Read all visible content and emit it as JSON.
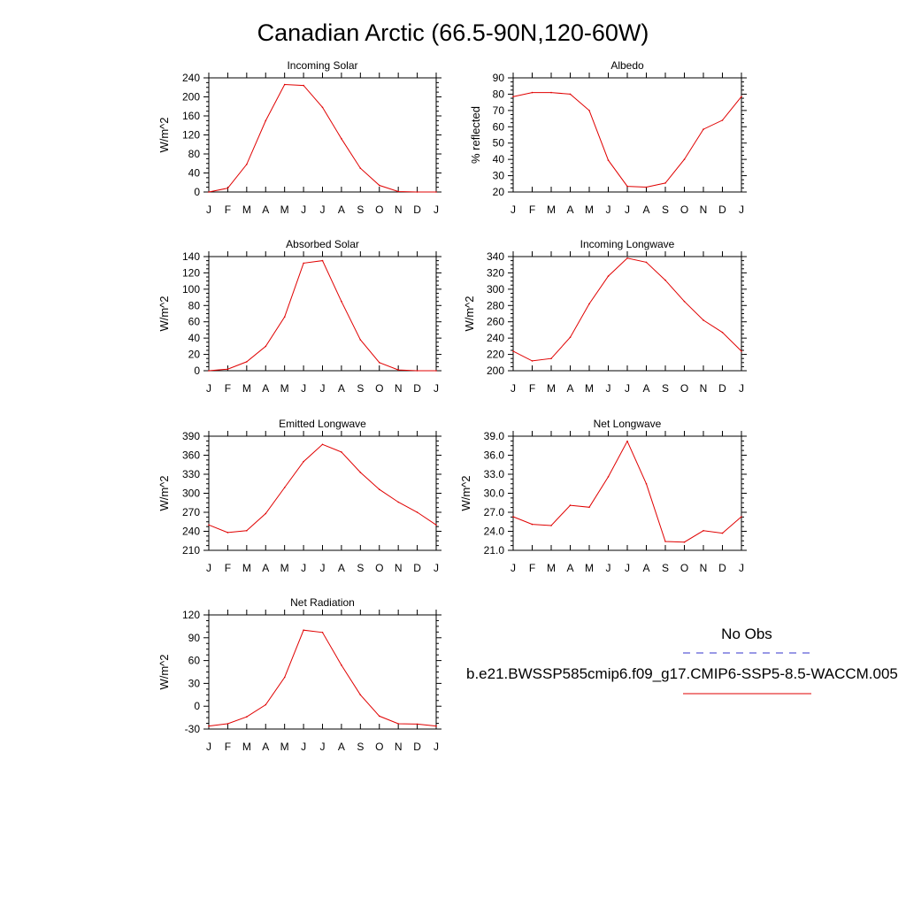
{
  "figure": {
    "title": "Canadian Arctic (66.5-90N,120-60W)"
  },
  "legend": {
    "items": [
      {
        "label": "No Obs",
        "color": "#3333cc",
        "style": "dashed"
      },
      {
        "label": "b.e21.BWSSP585cmip6.f09_g17.CMIP6-SSP5-8.5-WACCM.005",
        "color": "#e00000",
        "style": "solid"
      }
    ]
  },
  "chart_data": [
    {
      "type": "line",
      "title": "Incoming Solar",
      "ylabel": "W/m^2",
      "x": [
        "J",
        "F",
        "M",
        "A",
        "M",
        "J",
        "J",
        "A",
        "S",
        "O",
        "N",
        "D",
        "J"
      ],
      "ylim": [
        0,
        240
      ],
      "yticks": [
        0,
        40,
        80,
        120,
        160,
        200,
        240
      ],
      "ytick_labels": [
        "0",
        "40",
        "80",
        "120",
        "160",
        "200",
        "240"
      ],
      "series": [
        {
          "color": "#e00000",
          "values": [
            0,
            8,
            58,
            150,
            226,
            224,
            178,
            112,
            50,
            14,
            1,
            0,
            0
          ]
        }
      ]
    },
    {
      "type": "line",
      "title": "Albedo",
      "ylabel": "% reflected",
      "x": [
        "J",
        "F",
        "M",
        "A",
        "M",
        "J",
        "J",
        "A",
        "S",
        "O",
        "N",
        "D",
        "J"
      ],
      "ylim": [
        20,
        90
      ],
      "yticks": [
        20,
        30,
        40,
        50,
        60,
        70,
        80,
        90
      ],
      "ytick_labels": [
        "20",
        "30",
        "40",
        "50",
        "60",
        "70",
        "80",
        "90"
      ],
      "series": [
        {
          "color": "#e00000",
          "values": [
            78.5,
            81,
            81,
            80,
            70,
            39.5,
            23.5,
            23,
            25.5,
            40,
            58.5,
            64,
            78.5
          ]
        }
      ]
    },
    {
      "type": "line",
      "title": "Absorbed Solar",
      "ylabel": "W/m^2",
      "x": [
        "J",
        "F",
        "M",
        "A",
        "M",
        "J",
        "J",
        "A",
        "S",
        "O",
        "N",
        "D",
        "J"
      ],
      "ylim": [
        0,
        140
      ],
      "yticks": [
        0,
        20,
        40,
        60,
        80,
        100,
        120,
        140
      ],
      "ytick_labels": [
        "0",
        "20",
        "40",
        "60",
        "80",
        "100",
        "120",
        "140"
      ],
      "series": [
        {
          "color": "#e00000",
          "values": [
            0,
            2,
            11,
            30,
            66,
            132,
            135,
            85,
            38,
            10,
            1,
            0,
            0
          ]
        }
      ]
    },
    {
      "type": "line",
      "title": "Incoming Longwave",
      "ylabel": "W/m^2",
      "x": [
        "J",
        "F",
        "M",
        "A",
        "M",
        "J",
        "J",
        "A",
        "S",
        "O",
        "N",
        "D",
        "J"
      ],
      "ylim": [
        200,
        340
      ],
      "yticks": [
        200,
        220,
        240,
        260,
        280,
        300,
        320,
        340
      ],
      "ytick_labels": [
        "200",
        "220",
        "240",
        "260",
        "280",
        "300",
        "320",
        "340"
      ],
      "series": [
        {
          "color": "#e00000",
          "values": [
            224,
            212,
            215,
            241,
            282,
            316,
            338,
            333,
            311,
            285,
            262,
            247,
            224
          ]
        }
      ]
    },
    {
      "type": "line",
      "title": "Emitted Longwave",
      "ylabel": "W/m^2",
      "x": [
        "J",
        "F",
        "M",
        "A",
        "M",
        "J",
        "J",
        "A",
        "S",
        "O",
        "N",
        "D",
        "J"
      ],
      "ylim": [
        210,
        390
      ],
      "yticks": [
        210,
        240,
        270,
        300,
        330,
        360,
        390
      ],
      "ytick_labels": [
        "210",
        "240",
        "270",
        "300",
        "330",
        "360",
        "390"
      ],
      "series": [
        {
          "color": "#e00000",
          "values": [
            250,
            238,
            241,
            268,
            309,
            350,
            377,
            365,
            333,
            306,
            286,
            270,
            250
          ]
        }
      ]
    },
    {
      "type": "line",
      "title": "Net Longwave",
      "ylabel": "W/m^2",
      "x": [
        "J",
        "F",
        "M",
        "A",
        "M",
        "J",
        "J",
        "A",
        "S",
        "O",
        "N",
        "D",
        "J"
      ],
      "ylim": [
        21,
        39
      ],
      "yticks": [
        21,
        24,
        27,
        30,
        33,
        36,
        39
      ],
      "ytick_labels": [
        "21.0",
        "24.0",
        "27.0",
        "30.0",
        "33.0",
        "36.0",
        "39.0"
      ],
      "series": [
        {
          "color": "#e00000",
          "values": [
            26.3,
            25.1,
            24.9,
            28.1,
            27.8,
            32.6,
            38.2,
            31.5,
            22.4,
            22.3,
            24.1,
            23.7,
            26.3
          ]
        }
      ]
    },
    {
      "type": "line",
      "title": "Net Radiation",
      "ylabel": "W/m^2",
      "x": [
        "J",
        "F",
        "M",
        "A",
        "M",
        "J",
        "J",
        "A",
        "S",
        "O",
        "N",
        "D",
        "J"
      ],
      "ylim": [
        -30,
        120
      ],
      "yticks": [
        -30,
        0,
        30,
        60,
        90,
        120
      ],
      "ytick_labels": [
        "-30",
        "0",
        "30",
        "60",
        "90",
        "120"
      ],
      "series": [
        {
          "color": "#e00000",
          "values": [
            -26,
            -23,
            -14,
            2,
            38,
            100,
            97,
            54,
            15,
            -13,
            -23,
            -23.5,
            -26
          ]
        }
      ]
    }
  ]
}
